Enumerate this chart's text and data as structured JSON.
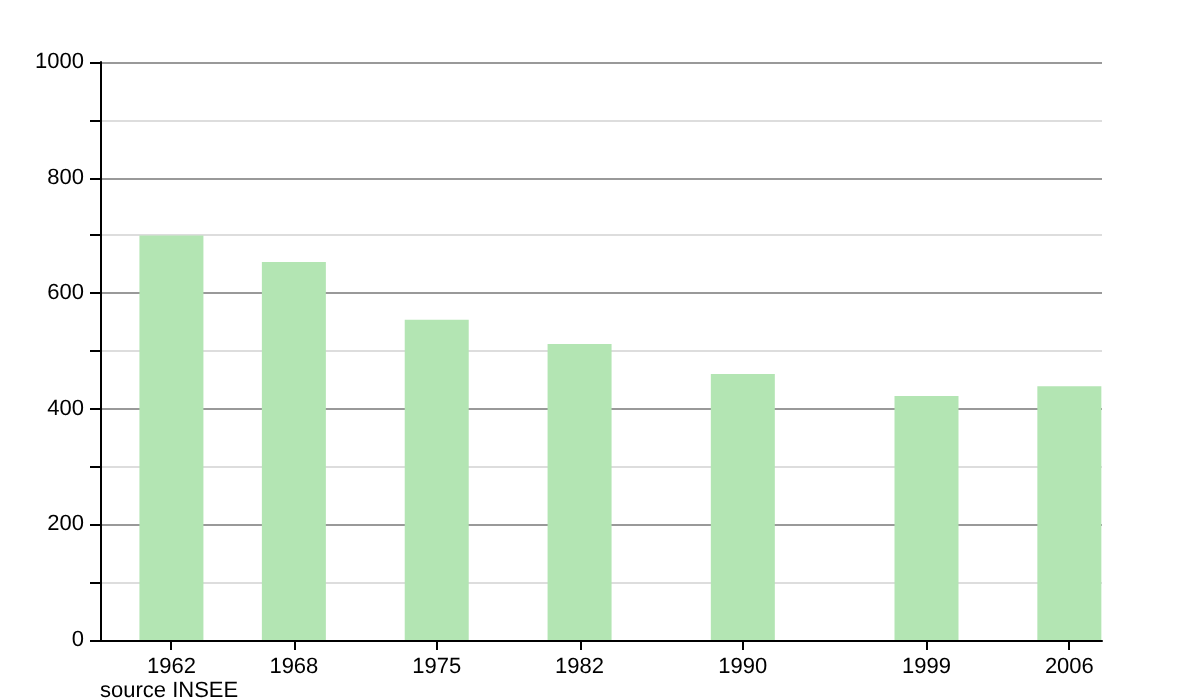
{
  "chart_data": {
    "type": "bar",
    "x": [
      1962,
      1968,
      1975,
      1982,
      1990,
      1999,
      2006
    ],
    "values": [
      700,
      654,
      554,
      512,
      460,
      422,
      439
    ],
    "color": "#b3e5b3",
    "xlim": [
      1958.5,
      2007.6
    ],
    "xticks": [
      1962,
      1968,
      1975,
      1982,
      1990,
      1999,
      2006
    ],
    "ylim": [
      0,
      1000
    ],
    "yticks": [
      0,
      {
        "value": 100,
        "label": null
      },
      200,
      {
        "value": 300,
        "label": null
      },
      400,
      {
        "value": 500,
        "label": null
      },
      600,
      {
        "value": 700,
        "label": null
      },
      800,
      {
        "value": 900,
        "label": null
      },
      1000
    ],
    "grid": "y",
    "annotations": [
      "source INSEE"
    ]
  }
}
